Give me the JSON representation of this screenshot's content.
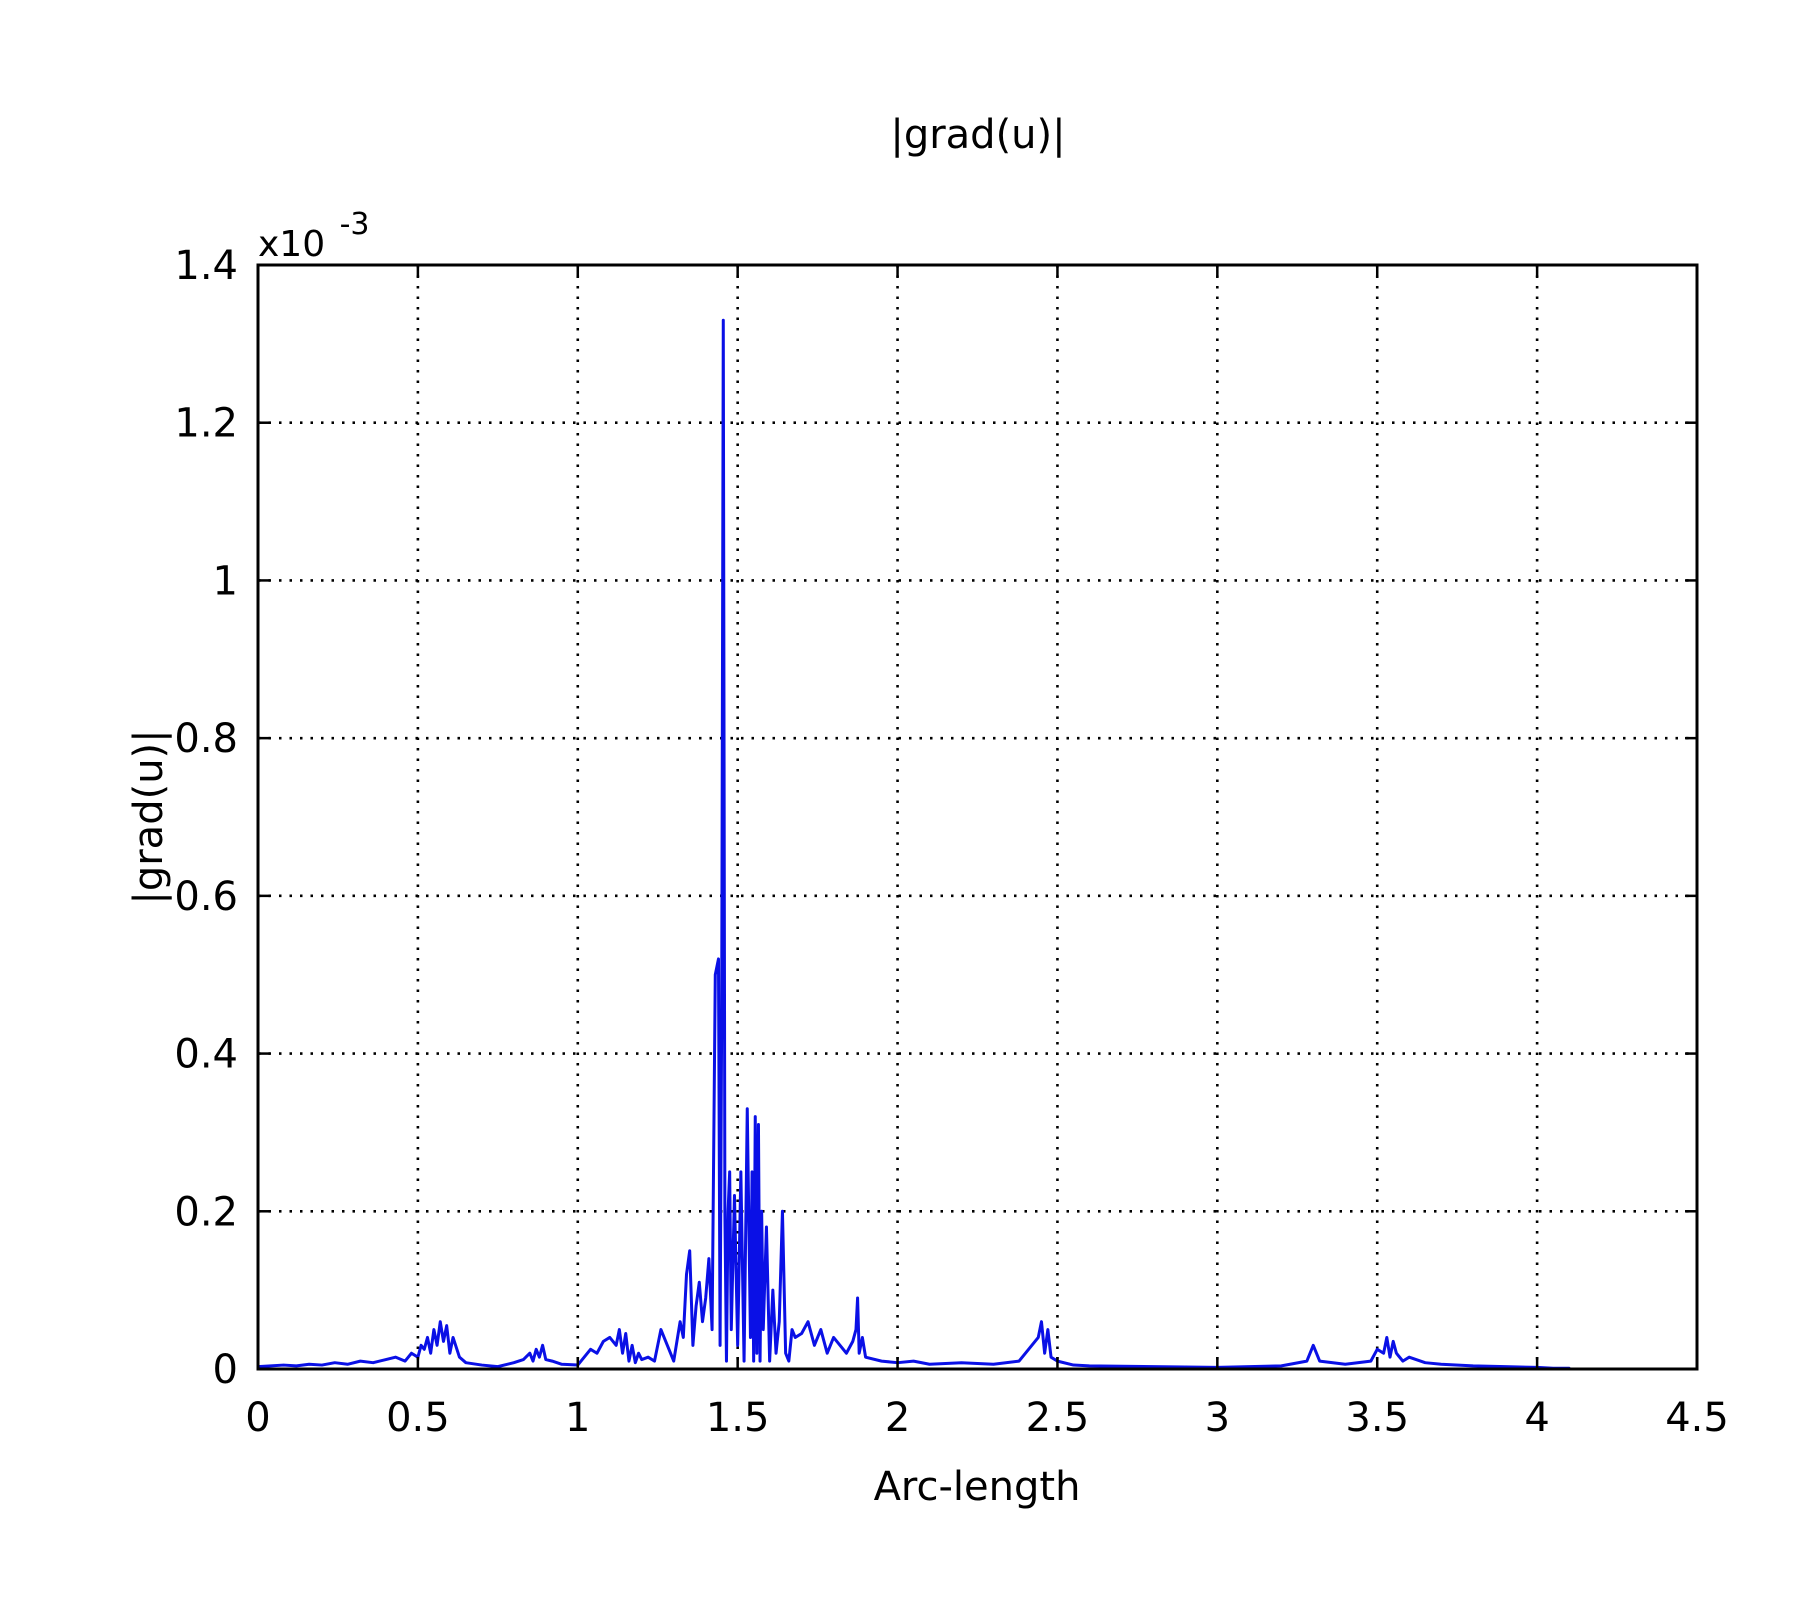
{
  "chart_data": {
    "type": "line",
    "title": "|grad(u)|",
    "xlabel": "Arc-length",
    "ylabel": "|grad(u)|",
    "y_exponent_base": "x10",
    "y_exponent_power": "-3",
    "xlim": [
      0,
      4.5
    ],
    "ylim": [
      0,
      1.4
    ],
    "xticks": [
      0,
      0.5,
      1,
      1.5,
      2,
      2.5,
      3,
      3.5,
      4,
      4.5
    ],
    "xtick_labels": [
      "0",
      "0.5",
      "1",
      "1.5",
      "2",
      "2.5",
      "3",
      "3.5",
      "4",
      "4.5"
    ],
    "yticks": [
      0,
      0.2,
      0.4,
      0.6,
      0.8,
      1,
      1.2,
      1.4
    ],
    "ytick_labels": [
      "0",
      "0.2",
      "0.4",
      "0.6",
      "0.8",
      "1",
      "1.2",
      "1.4"
    ],
    "grid": true,
    "line_color": "#0a10e6",
    "series": [
      {
        "x": [
          0,
          0.04,
          0.08,
          0.12,
          0.16,
          0.2,
          0.24,
          0.28,
          0.32,
          0.36,
          0.4,
          0.43,
          0.46,
          0.48,
          0.5,
          0.51,
          0.52,
          0.53,
          0.54,
          0.55,
          0.56,
          0.57,
          0.58,
          0.59,
          0.6,
          0.61,
          0.63,
          0.65,
          0.7,
          0.75,
          0.8,
          0.83,
          0.85,
          0.86,
          0.87,
          0.88,
          0.89,
          0.9,
          0.92,
          0.95,
          1,
          1.02,
          1.04,
          1.06,
          1.08,
          1.1,
          1.12,
          1.13,
          1.14,
          1.15,
          1.16,
          1.17,
          1.18,
          1.19,
          1.2,
          1.22,
          1.24,
          1.26,
          1.28,
          1.3,
          1.32,
          1.33,
          1.34,
          1.35,
          1.36,
          1.37,
          1.38,
          1.39,
          1.4,
          1.41,
          1.42,
          1.43,
          1.44,
          1.445,
          1.45,
          1.455,
          1.46,
          1.465,
          1.47,
          1.475,
          1.48,
          1.49,
          1.5,
          1.51,
          1.52,
          1.53,
          1.54,
          1.545,
          1.55,
          1.555,
          1.56,
          1.565,
          1.57,
          1.575,
          1.58,
          1.59,
          1.6,
          1.61,
          1.62,
          1.63,
          1.64,
          1.65,
          1.66,
          1.67,
          1.68,
          1.7,
          1.72,
          1.74,
          1.76,
          1.78,
          1.8,
          1.82,
          1.84,
          1.86,
          1.87,
          1.875,
          1.88,
          1.89,
          1.9,
          1.95,
          2,
          2.05,
          2.1,
          2.2,
          2.3,
          2.38,
          2.4,
          2.42,
          2.44,
          2.45,
          2.46,
          2.47,
          2.48,
          2.5,
          2.55,
          2.6,
          2.8,
          3,
          3.2,
          3.28,
          3.3,
          3.32,
          3.4,
          3.48,
          3.5,
          3.52,
          3.53,
          3.54,
          3.55,
          3.56,
          3.58,
          3.6,
          3.65,
          3.7,
          3.8,
          3.9,
          4,
          4.05,
          4.1
        ],
        "y": [
          0.003,
          0.004,
          0.005,
          0.004,
          0.006,
          0.005,
          0.008,
          0.006,
          0.01,
          0.008,
          0.012,
          0.015,
          0.01,
          0.02,
          0.015,
          0.03,
          0.025,
          0.04,
          0.02,
          0.05,
          0.03,
          0.06,
          0.035,
          0.055,
          0.02,
          0.04,
          0.015,
          0.008,
          0.005,
          0.003,
          0.008,
          0.012,
          0.02,
          0.01,
          0.025,
          0.015,
          0.03,
          0.012,
          0.01,
          0.006,
          0.005,
          0.015,
          0.025,
          0.02,
          0.035,
          0.04,
          0.03,
          0.05,
          0.02,
          0.045,
          0.01,
          0.03,
          0.008,
          0.02,
          0.012,
          0.015,
          0.01,
          0.05,
          0.03,
          0.01,
          0.06,
          0.04,
          0.12,
          0.15,
          0.03,
          0.08,
          0.11,
          0.06,
          0.09,
          0.14,
          0.05,
          0.5,
          0.52,
          0.03,
          0.45,
          1.33,
          0.2,
          0.01,
          0.2,
          0.25,
          0.05,
          0.22,
          0.03,
          0.25,
          0.01,
          0.33,
          0.04,
          0.25,
          0.01,
          0.32,
          0.02,
          0.31,
          0.01,
          0.2,
          0.05,
          0.18,
          0.01,
          0.1,
          0.02,
          0.06,
          0.2,
          0.02,
          0.01,
          0.05,
          0.04,
          0.045,
          0.06,
          0.03,
          0.05,
          0.02,
          0.04,
          0.03,
          0.02,
          0.035,
          0.05,
          0.09,
          0.02,
          0.04,
          0.015,
          0.01,
          0.008,
          0.01,
          0.006,
          0.008,
          0.006,
          0.01,
          0.02,
          0.03,
          0.04,
          0.06,
          0.02,
          0.05,
          0.015,
          0.01,
          0.005,
          0.004,
          0.003,
          0.002,
          0.004,
          0.01,
          0.03,
          0.01,
          0.006,
          0.01,
          0.025,
          0.02,
          0.04,
          0.015,
          0.035,
          0.02,
          0.01,
          0.015,
          0.008,
          0.006,
          0.004,
          0.003,
          0.002,
          0.001,
          0.001
        ]
      }
    ]
  }
}
